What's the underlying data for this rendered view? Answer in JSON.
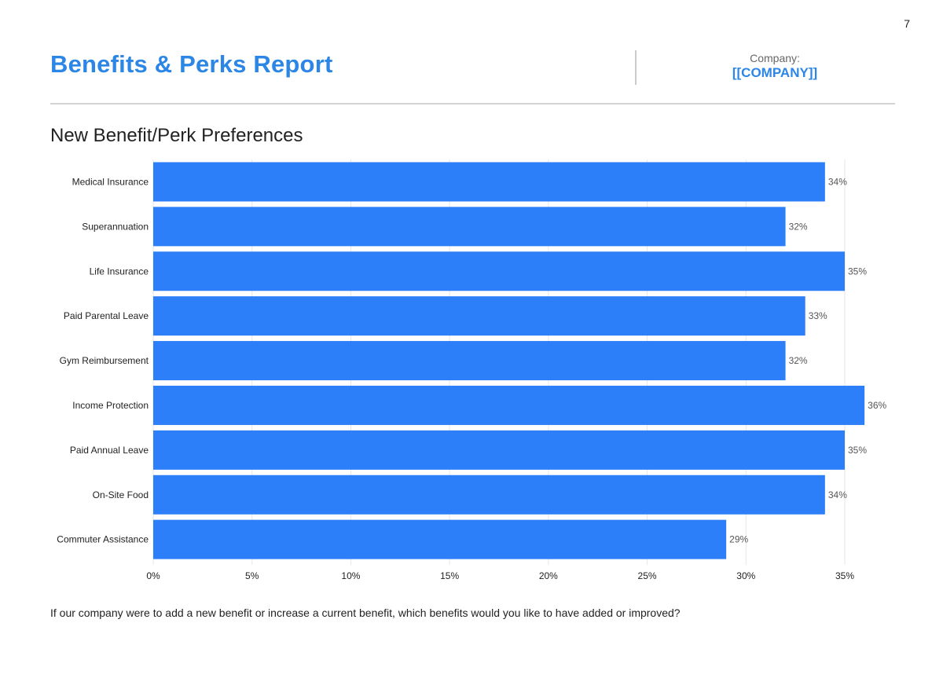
{
  "page_number": "7",
  "header": {
    "title": "Benefits & Perks Report",
    "company_label": "Company:",
    "company_value": "[[COMPANY]]"
  },
  "section_title": "New Benefit/Perk Preferences",
  "question": "If our company were to add a new benefit or increase a current benefit, which benefits would you like to have added or improved?",
  "colors": {
    "accent": "#2b86e6",
    "bar": "#2d7ff9"
  },
  "chart_data": {
    "type": "bar",
    "orientation": "horizontal",
    "categories": [
      "Medical Insurance",
      "Superannuation",
      "Life Insurance",
      "Paid Parental Leave",
      "Gym Reimbursement",
      "Income Protection",
      "Paid Annual Leave",
      "On-Site Food",
      "Commuter Assistance"
    ],
    "values": [
      34,
      32,
      35,
      33,
      32,
      36,
      35,
      34,
      29
    ],
    "data_labels": [
      "34%",
      "32%",
      "35%",
      "33%",
      "32%",
      "36%",
      "35%",
      "34%",
      "29%"
    ],
    "xlim": [
      0,
      35
    ],
    "x_ticks": [
      "0%",
      "5%",
      "10%",
      "15%",
      "20%",
      "25%",
      "30%",
      "35%"
    ],
    "grid": true,
    "legend": false
  }
}
